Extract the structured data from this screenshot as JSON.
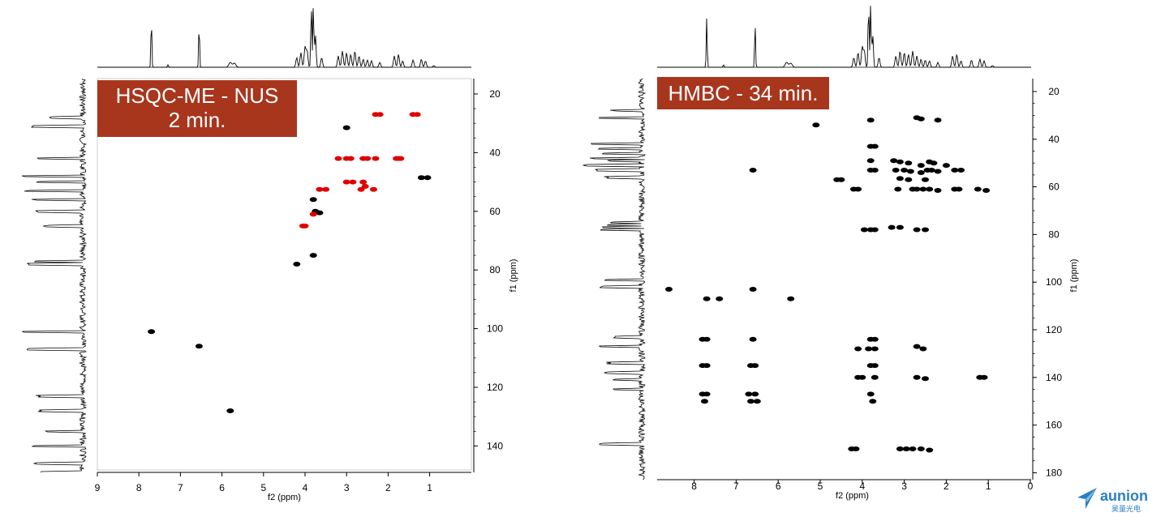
{
  "chart_data": [
    {
      "type": "scatter",
      "title": "HSQC-ME - NUS",
      "subtitle": "2 min.",
      "xlabel": "f2 (ppm)",
      "ylabel": "f1 (ppm)",
      "xlim": [
        9,
        0
      ],
      "ylim": [
        20,
        150
      ],
      "xticks": [
        9,
        8,
        7,
        6,
        5,
        4,
        3,
        2,
        1
      ],
      "yticks": [
        20,
        40,
        60,
        80,
        100,
        120,
        140
      ],
      "series": [
        {
          "color": "#000000",
          "points": [
            [
              7.7,
              101
            ],
            [
              6.55,
              106
            ],
            [
              5.8,
              128
            ],
            [
              4.2,
              78
            ],
            [
              3.0,
              31.5
            ],
            [
              3.8,
              56
            ],
            [
              3.75,
              60
            ],
            [
              3.65,
              60.5
            ],
            [
              3.8,
              75
            ],
            [
              1.2,
              48.5
            ],
            [
              1.05,
              48.5
            ]
          ]
        },
        {
          "color": "#e00000",
          "points": [
            [
              2.3,
              27
            ],
            [
              2.2,
              27
            ],
            [
              1.4,
              27
            ],
            [
              1.3,
              27
            ],
            [
              3.2,
              42
            ],
            [
              3.0,
              42
            ],
            [
              2.9,
              42
            ],
            [
              2.6,
              42
            ],
            [
              2.5,
              42
            ],
            [
              2.3,
              42
            ],
            [
              1.8,
              42
            ],
            [
              1.75,
              42
            ],
            [
              1.7,
              42
            ],
            [
              3.0,
              50
            ],
            [
              2.85,
              50
            ],
            [
              2.6,
              50
            ],
            [
              2.55,
              51.5
            ],
            [
              2.35,
              52.5
            ],
            [
              3.65,
              52.5
            ],
            [
              3.5,
              52.5
            ],
            [
              4.0,
              65
            ],
            [
              4.05,
              65
            ],
            [
              3.8,
              61
            ],
            [
              2.65,
              52.5
            ]
          ]
        }
      ]
    },
    {
      "type": "scatter",
      "title": "HMBC - 34 min.",
      "xlabel": "f2 (ppm)",
      "ylabel": "f1 (ppm)",
      "xlim": [
        9,
        0
      ],
      "ylim": [
        15,
        180
      ],
      "xticks": [
        8,
        7,
        6,
        5,
        4,
        3,
        2,
        1,
        0
      ],
      "yticks": [
        20,
        40,
        60,
        80,
        100,
        120,
        140,
        160,
        180
      ],
      "series": [
        {
          "color": "#000000",
          "points": [
            [
              2.7,
              31
            ],
            [
              2.6,
              31.5
            ],
            [
              2.2,
              32
            ],
            [
              3.8,
              32
            ],
            [
              5.1,
              34
            ],
            [
              3.8,
              43
            ],
            [
              3.7,
              43
            ],
            [
              3.8,
              49
            ],
            [
              3.25,
              49
            ],
            [
              3.1,
              49.5
            ],
            [
              2.9,
              50
            ],
            [
              2.6,
              51
            ],
            [
              2.4,
              49.5
            ],
            [
              2.3,
              50
            ],
            [
              2.0,
              51
            ],
            [
              3.8,
              53
            ],
            [
              3.7,
              53
            ],
            [
              3.2,
              53
            ],
            [
              3.0,
              53
            ],
            [
              2.85,
              53.5
            ],
            [
              2.6,
              54
            ],
            [
              2.45,
              53
            ],
            [
              2.35,
              53
            ],
            [
              2.2,
              53.5
            ],
            [
              1.8,
              53
            ],
            [
              1.65,
              53
            ],
            [
              6.6,
              53
            ],
            [
              3.1,
              56.5
            ],
            [
              2.9,
              57
            ],
            [
              2.5,
              57
            ],
            [
              4.6,
              57
            ],
            [
              4.5,
              57
            ],
            [
              4.2,
              61
            ],
            [
              4.1,
              61
            ],
            [
              3.15,
              61
            ],
            [
              2.8,
              61
            ],
            [
              2.7,
              61
            ],
            [
              2.55,
              61
            ],
            [
              2.4,
              61
            ],
            [
              2.2,
              61.5
            ],
            [
              1.8,
              61
            ],
            [
              1.7,
              61
            ],
            [
              1.25,
              61
            ],
            [
              1.05,
              61.5
            ],
            [
              3.95,
              78
            ],
            [
              3.8,
              78
            ],
            [
              3.7,
              78
            ],
            [
              3.3,
              77
            ],
            [
              3.1,
              77
            ],
            [
              2.7,
              78
            ],
            [
              2.5,
              78
            ],
            [
              8.6,
              103
            ],
            [
              6.6,
              103
            ],
            [
              5.7,
              107
            ],
            [
              7.7,
              107
            ],
            [
              7.4,
              107
            ],
            [
              7.8,
              124
            ],
            [
              7.7,
              124
            ],
            [
              6.6,
              124
            ],
            [
              3.8,
              124
            ],
            [
              3.7,
              124
            ],
            [
              2.7,
              127
            ],
            [
              2.55,
              128
            ],
            [
              4.1,
              128
            ],
            [
              3.85,
              128
            ],
            [
              3.7,
              128
            ],
            [
              7.8,
              135
            ],
            [
              7.7,
              135
            ],
            [
              6.65,
              135
            ],
            [
              6.55,
              135
            ],
            [
              3.8,
              135
            ],
            [
              3.7,
              135
            ],
            [
              4.1,
              140
            ],
            [
              4.0,
              140
            ],
            [
              3.7,
              140
            ],
            [
              2.7,
              140
            ],
            [
              2.5,
              140.5
            ],
            [
              1.2,
              140
            ],
            [
              1.1,
              140
            ],
            [
              7.8,
              147
            ],
            [
              7.7,
              147
            ],
            [
              6.7,
              147
            ],
            [
              6.55,
              147
            ],
            [
              3.8,
              147
            ],
            [
              3.75,
              150
            ],
            [
              7.75,
              150
            ],
            [
              6.65,
              150
            ],
            [
              6.5,
              150
            ],
            [
              4.25,
              170
            ],
            [
              4.15,
              170
            ],
            [
              3.1,
              170
            ],
            [
              2.95,
              170
            ],
            [
              2.8,
              170
            ],
            [
              2.6,
              170
            ],
            [
              2.4,
              170.5
            ]
          ]
        }
      ]
    }
  ],
  "labels": {
    "hsqc_line1": "HSQC-ME - NUS",
    "hsqc_line2": "2 min.",
    "hmbc": "HMBC - 34 min."
  },
  "logo": {
    "text": "aunion",
    "sub": "昊量光电",
    "color": "#2a7fc1"
  }
}
